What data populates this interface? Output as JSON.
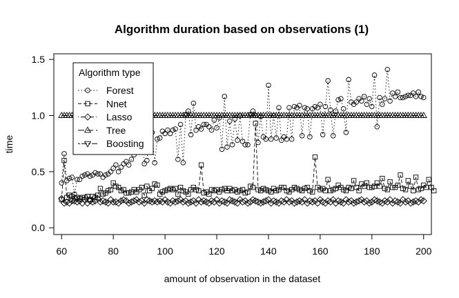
{
  "chart_data": {
    "type": "line",
    "title": "Algorithm duration based on observations (1)",
    "xlabel": "amount of observation in the dataset",
    "ylabel": "time",
    "xlim": [
      57,
      203
    ],
    "ylim": [
      -0.06,
      1.55
    ],
    "xticks": [
      "60",
      "80",
      "100",
      "120",
      "140",
      "160",
      "180",
      "200"
    ],
    "yticks": [
      "0.0",
      "0.5",
      "1.0",
      "1.5"
    ],
    "legend_title": "Algorithm type",
    "legend_position": "top-left",
    "x_start": 60,
    "x_step": 1,
    "series": [
      {
        "name": "Forest",
        "marker": "circle",
        "line_style": "dotted",
        "values": [
          0.4,
          0.66,
          0.42,
          0.44,
          0.45,
          0.3,
          0.43,
          0.43,
          0.46,
          0.47,
          0.48,
          0.46,
          0.47,
          0.49,
          0.48,
          0.48,
          0.45,
          0.47,
          0.48,
          0.5,
          0.53,
          0.56,
          0.5,
          0.54,
          0.57,
          0.59,
          0.56,
          0.61,
          0.65,
          0.7,
          0.85,
          0.84,
          0.57,
          0.6,
          0.82,
          0.85,
          0.58,
          0.79,
          0.8,
          0.86,
          0.84,
          0.87,
          0.84,
          0.87,
          0.88,
          0.61,
          0.92,
          0.58,
          1.01,
          1.04,
          0.83,
          1.11,
          0.87,
          0.9,
          0.88,
          0.92,
          0.92,
          0.9,
          0.87,
          0.96,
          0.89,
          0.98,
          0.7,
          1.17,
          0.72,
          0.95,
          0.74,
          0.97,
          0.78,
          1.0,
          0.77,
          0.74,
          0.74,
          1.01,
          1.04,
          1.0,
          0.76,
          0.99,
          0.81,
          0.79,
          1.27,
          0.79,
          1.0,
          0.8,
          1.07,
          0.78,
          0.81,
          0.79,
          1.07,
          0.79,
          1.08,
          1.07,
          1.09,
          0.82,
          1.07,
          1.06,
          0.81,
          1.06,
          1.08,
          1.07,
          1.1,
          0.83,
          1.08,
          1.31,
          1.05,
          0.82,
          1.04,
          1.14,
          1.15,
          1.06,
          0.85,
          1.32,
          1.12,
          1.1,
          1.12,
          1.15,
          1.13,
          1.17,
          1.1,
          1.15,
          1.08,
          1.36,
          0.9,
          1.16,
          1.1,
          1.15,
          1.41,
          1.13,
          1.2,
          1.17,
          1.21,
          1.16,
          1.16,
          1.17,
          1.18,
          1.18,
          1.2,
          1.17,
          1.21,
          1.17,
          1.16
        ]
      },
      {
        "name": "Nnet",
        "marker": "square",
        "line_style": "dashed",
        "values": [
          0.25,
          0.6,
          0.27,
          0.29,
          0.28,
          0.26,
          0.27,
          0.26,
          0.27,
          0.27,
          0.28,
          0.25,
          0.28,
          0.27,
          0.29,
          0.35,
          0.3,
          0.31,
          0.33,
          0.34,
          0.4,
          0.37,
          0.36,
          0.33,
          0.34,
          0.31,
          0.31,
          0.32,
          0.34,
          0.32,
          0.34,
          0.36,
          0.29,
          0.37,
          0.33,
          0.35,
          0.39,
          0.38,
          0.3,
          0.32,
          0.33,
          0.34,
          0.35,
          0.34,
          0.35,
          0.3,
          0.36,
          0.33,
          0.32,
          0.3,
          0.34,
          0.36,
          0.34,
          0.33,
          0.56,
          0.31,
          0.32,
          0.3,
          0.34,
          0.33,
          0.34,
          0.32,
          0.34,
          0.35,
          0.33,
          0.35,
          0.33,
          0.34,
          0.32,
          0.33,
          0.34,
          0.31,
          0.32,
          0.37,
          0.36,
          0.93,
          0.34,
          0.33,
          0.35,
          0.34,
          0.33,
          0.32,
          0.35,
          0.33,
          0.34,
          0.36,
          0.36,
          0.33,
          0.32,
          0.34,
          0.36,
          0.35,
          0.34,
          0.33,
          0.35,
          0.36,
          0.33,
          0.32,
          0.63,
          0.36,
          0.34,
          0.35,
          0.33,
          0.43,
          0.33,
          0.34,
          0.35,
          0.38,
          0.36,
          0.34,
          0.33,
          0.36,
          0.35,
          0.42,
          0.36,
          0.33,
          0.39,
          0.37,
          0.4,
          0.36,
          0.36,
          0.37,
          0.4,
          0.37,
          0.44,
          0.35,
          0.34,
          0.41,
          0.36,
          0.36,
          0.38,
          0.47,
          0.35,
          0.34,
          0.42,
          0.37,
          0.33,
          0.45,
          0.34,
          0.35,
          0.38,
          0.36,
          0.43,
          0.36,
          0.33
        ]
      },
      {
        "name": "Lasso",
        "marker": "diamond",
        "line_style": "dotdash",
        "values": [
          0.26,
          0.22,
          0.23,
          0.22,
          0.24,
          0.24,
          0.23,
          0.24,
          0.22,
          0.25,
          0.22,
          0.24,
          0.23,
          0.24,
          0.26,
          0.23,
          0.24,
          0.23,
          0.22,
          0.25,
          0.23,
          0.23,
          0.22,
          0.24,
          0.25,
          0.24,
          0.22,
          0.23,
          0.24,
          0.25,
          0.23,
          0.24,
          0.22,
          0.25,
          0.24,
          0.23,
          0.24,
          0.23,
          0.24,
          0.23,
          0.25,
          0.23,
          0.22,
          0.24,
          0.23,
          0.24,
          0.25,
          0.23,
          0.24,
          0.22,
          0.23,
          0.24,
          0.22,
          0.25,
          0.23,
          0.24,
          0.23,
          0.22,
          0.24,
          0.23,
          0.25,
          0.22,
          0.24,
          0.23,
          0.22,
          0.25,
          0.24,
          0.23,
          0.22,
          0.25,
          0.23,
          0.24,
          0.22,
          0.23,
          0.25,
          0.24,
          0.23,
          0.22,
          0.23,
          0.24,
          0.25,
          0.22,
          0.24,
          0.23,
          0.22,
          0.24,
          0.23,
          0.25,
          0.23,
          0.24,
          0.22,
          0.23,
          0.24,
          0.23,
          0.25,
          0.22,
          0.24,
          0.23,
          0.24,
          0.22,
          0.25,
          0.23,
          0.22,
          0.24,
          0.23,
          0.25,
          0.22,
          0.24,
          0.23,
          0.22,
          0.25,
          0.23,
          0.24,
          0.22,
          0.23,
          0.24,
          0.25,
          0.23,
          0.24,
          0.22,
          0.23,
          0.25,
          0.24,
          0.23,
          0.22,
          0.24,
          0.23,
          0.25,
          0.22,
          0.24,
          0.23,
          0.22,
          0.25,
          0.23,
          0.24,
          0.22,
          0.23,
          0.24,
          0.23,
          0.25,
          0.24
        ]
      },
      {
        "name": "Tree",
        "marker": "triangle-up",
        "line_style": "longdash",
        "values": [
          1.0,
          1.0,
          1.0,
          1.0,
          1.0,
          1.0,
          1.0,
          1.0,
          1.0,
          1.0,
          1.0,
          1.0,
          1.0,
          1.0,
          1.0,
          1.0,
          1.0,
          1.0,
          1.0,
          1.0,
          1.0,
          1.0,
          1.0,
          1.0,
          1.0,
          1.0,
          1.0,
          1.0,
          1.0,
          1.0,
          1.0,
          1.0,
          1.0,
          1.0,
          1.0,
          1.0,
          1.0,
          1.0,
          1.0,
          1.0,
          1.0,
          1.0,
          1.0,
          1.0,
          1.0,
          1.0,
          1.0,
          1.0,
          1.0,
          1.0,
          1.0,
          1.0,
          1.0,
          1.0,
          1.0,
          1.0,
          1.0,
          1.0,
          1.0,
          1.0,
          1.0,
          1.0,
          1.0,
          1.0,
          1.0,
          1.0,
          1.0,
          1.0,
          1.0,
          1.0,
          1.0,
          1.0,
          1.0,
          1.0,
          1.0,
          1.0,
          1.0,
          1.0,
          1.0,
          1.0,
          1.0,
          1.0,
          1.0,
          1.0,
          1.0,
          1.0,
          1.0,
          1.0,
          1.0,
          1.0,
          1.0,
          1.0,
          1.0,
          1.0,
          1.0,
          1.0,
          1.0,
          1.0,
          1.0,
          1.0,
          1.0,
          1.0,
          1.0,
          1.0,
          1.0,
          1.0,
          1.0,
          1.0,
          1.0,
          1.0,
          1.0,
          1.0,
          1.0,
          1.0,
          1.0,
          1.0,
          1.0,
          1.0,
          1.0,
          1.0,
          1.0,
          1.0,
          1.0,
          1.0,
          1.0,
          1.0,
          1.0,
          1.0,
          1.0,
          1.0,
          1.0,
          1.0,
          1.0,
          1.0,
          1.0,
          1.0,
          1.0,
          1.0,
          1.0,
          1.0,
          1.0
        ]
      },
      {
        "name": "Boosting",
        "marker": "triangle-down",
        "line_style": "twodash",
        "values": []
      }
    ]
  }
}
